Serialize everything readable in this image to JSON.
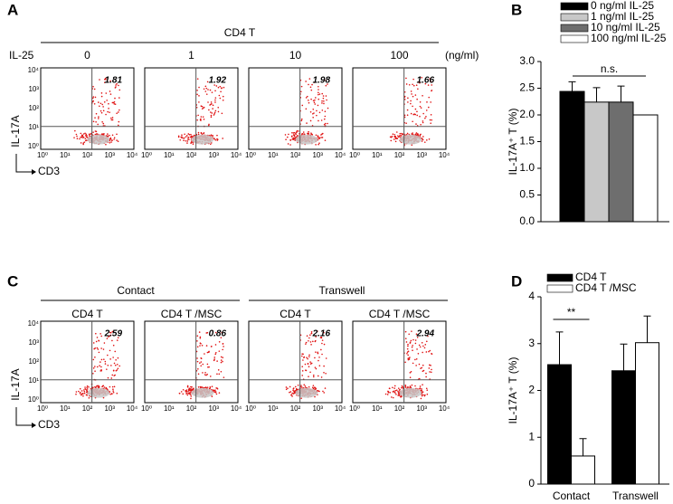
{
  "panel_a": {
    "label": "A",
    "header": "CD4 T",
    "row_label": "IL-25",
    "unit": "(ng/ml)",
    "columns": [
      "0",
      "1",
      "10",
      "100"
    ],
    "percentages": [
      1.81,
      1.92,
      1.98,
      1.66
    ],
    "y_axis": "IL-17A",
    "x_axis": "CD3",
    "ticks": [
      "10⁰",
      "10¹",
      "10²",
      "10³",
      "10⁴"
    ]
  },
  "panel_c": {
    "label": "C",
    "groups": [
      "Contact",
      "Transwell"
    ],
    "columns": [
      "CD4 T",
      "CD4 T /MSC",
      "CD4 T",
      "CD4 T /MSC"
    ],
    "percentages": [
      2.59,
      0.86,
      2.16,
      2.94
    ],
    "y_axis": "IL-17A",
    "x_axis": "CD3",
    "ticks": [
      "10⁰",
      "10¹",
      "10²",
      "10³",
      "10⁴"
    ]
  },
  "chart_data": [
    {
      "type": "bar",
      "panel_label": "B",
      "y_label": "IL-17A⁺ T (%)",
      "annotation": "n.s.",
      "ylim": [
        0,
        3
      ],
      "yticks": [
        {
          "value": 0,
          "label": "0.0"
        },
        0.5,
        {
          "value": 1,
          "label": "1.0"
        },
        1.5,
        {
          "value": 2,
          "label": "2.0"
        },
        2.5,
        {
          "value": 3,
          "label": "3.0"
        }
      ],
      "series": [
        {
          "name": "0 ng/ml IL-25",
          "color": "#000000",
          "values": [
            2.44
          ],
          "errors": [
            0.18
          ]
        },
        {
          "name": "1 ng/ml IL-25",
          "color": "#c8c8c8",
          "values": [
            2.24
          ],
          "errors": [
            0.27
          ]
        },
        {
          "name": "10 ng/ml IL-25",
          "color": "#6e6e6e",
          "values": [
            2.24
          ],
          "errors": [
            0.3
          ]
        },
        {
          "name": "100 ng/ml IL-25",
          "color": "#ffffff",
          "values": [
            2.0
          ],
          "errors": [
            0
          ]
        }
      ]
    },
    {
      "type": "bar",
      "panel_label": "D",
      "y_label": "IL-17A⁺ T (%)",
      "annotation": "**",
      "categories": [
        "Contact",
        "Transwell"
      ],
      "ylim": [
        0,
        4
      ],
      "yticks": [
        0,
        1,
        2,
        3,
        4
      ],
      "series": [
        {
          "name": "CD4 T",
          "color": "#000000",
          "values": [
            2.55,
            2.42
          ],
          "errors": [
            0.7,
            0.57
          ]
        },
        {
          "name": "CD4 T /MSC",
          "color": "#ffffff",
          "values": [
            0.6,
            3.02
          ],
          "errors": [
            0.37,
            0.57
          ]
        }
      ]
    }
  ]
}
